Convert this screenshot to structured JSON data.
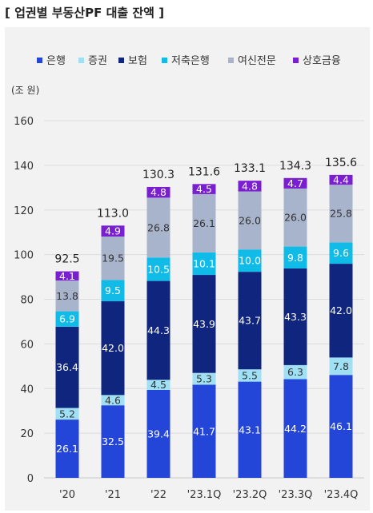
{
  "title": "[ 업권별 부동산PF 대출 잔액 ]",
  "chart_data": {
    "type": "bar",
    "stacked": true,
    "unit_label": "(조 원)",
    "categories": [
      "'20",
      "'21",
      "'22",
      "'23.1Q",
      "'23.2Q",
      "'23.3Q",
      "'23.4Q"
    ],
    "ylim": [
      0,
      160
    ],
    "yticks": [
      0,
      20,
      40,
      60,
      80,
      100,
      120,
      140,
      160
    ],
    "grid": true,
    "legend_position": "top",
    "series": [
      {
        "name": "은행",
        "color": "#2446d8",
        "values": [
          26.1,
          32.5,
          39.4,
          41.7,
          43.1,
          44.2,
          46.1
        ],
        "label_color": "#ffffff"
      },
      {
        "name": "증권",
        "color": "#9fe0f5",
        "values": [
          5.2,
          4.6,
          4.5,
          5.3,
          5.5,
          6.3,
          7.8
        ],
        "label_color": "#333333"
      },
      {
        "name": "보험",
        "color": "#10267e",
        "values": [
          36.4,
          42.0,
          44.3,
          43.9,
          43.7,
          43.3,
          42.0
        ],
        "label_color": "#ffffff"
      },
      {
        "name": "저축은행",
        "color": "#11bbe8",
        "values": [
          6.9,
          9.5,
          10.5,
          10.1,
          10.0,
          9.8,
          9.6
        ],
        "label_color": "#ffffff"
      },
      {
        "name": "여신전문",
        "color": "#a8b4cc",
        "values": [
          13.8,
          19.5,
          26.8,
          26.1,
          26.0,
          26.0,
          25.8
        ],
        "label_color": "#333333"
      },
      {
        "name": "상호금융",
        "color": "#7a1fd0",
        "values": [
          4.1,
          4.9,
          4.8,
          4.5,
          4.8,
          4.7,
          4.4
        ],
        "label_color": "#ffffff"
      }
    ],
    "totals": [
      "92.5",
      "113.0",
      "130.3",
      "131.6",
      "133.1",
      "134.3",
      "135.6"
    ]
  }
}
